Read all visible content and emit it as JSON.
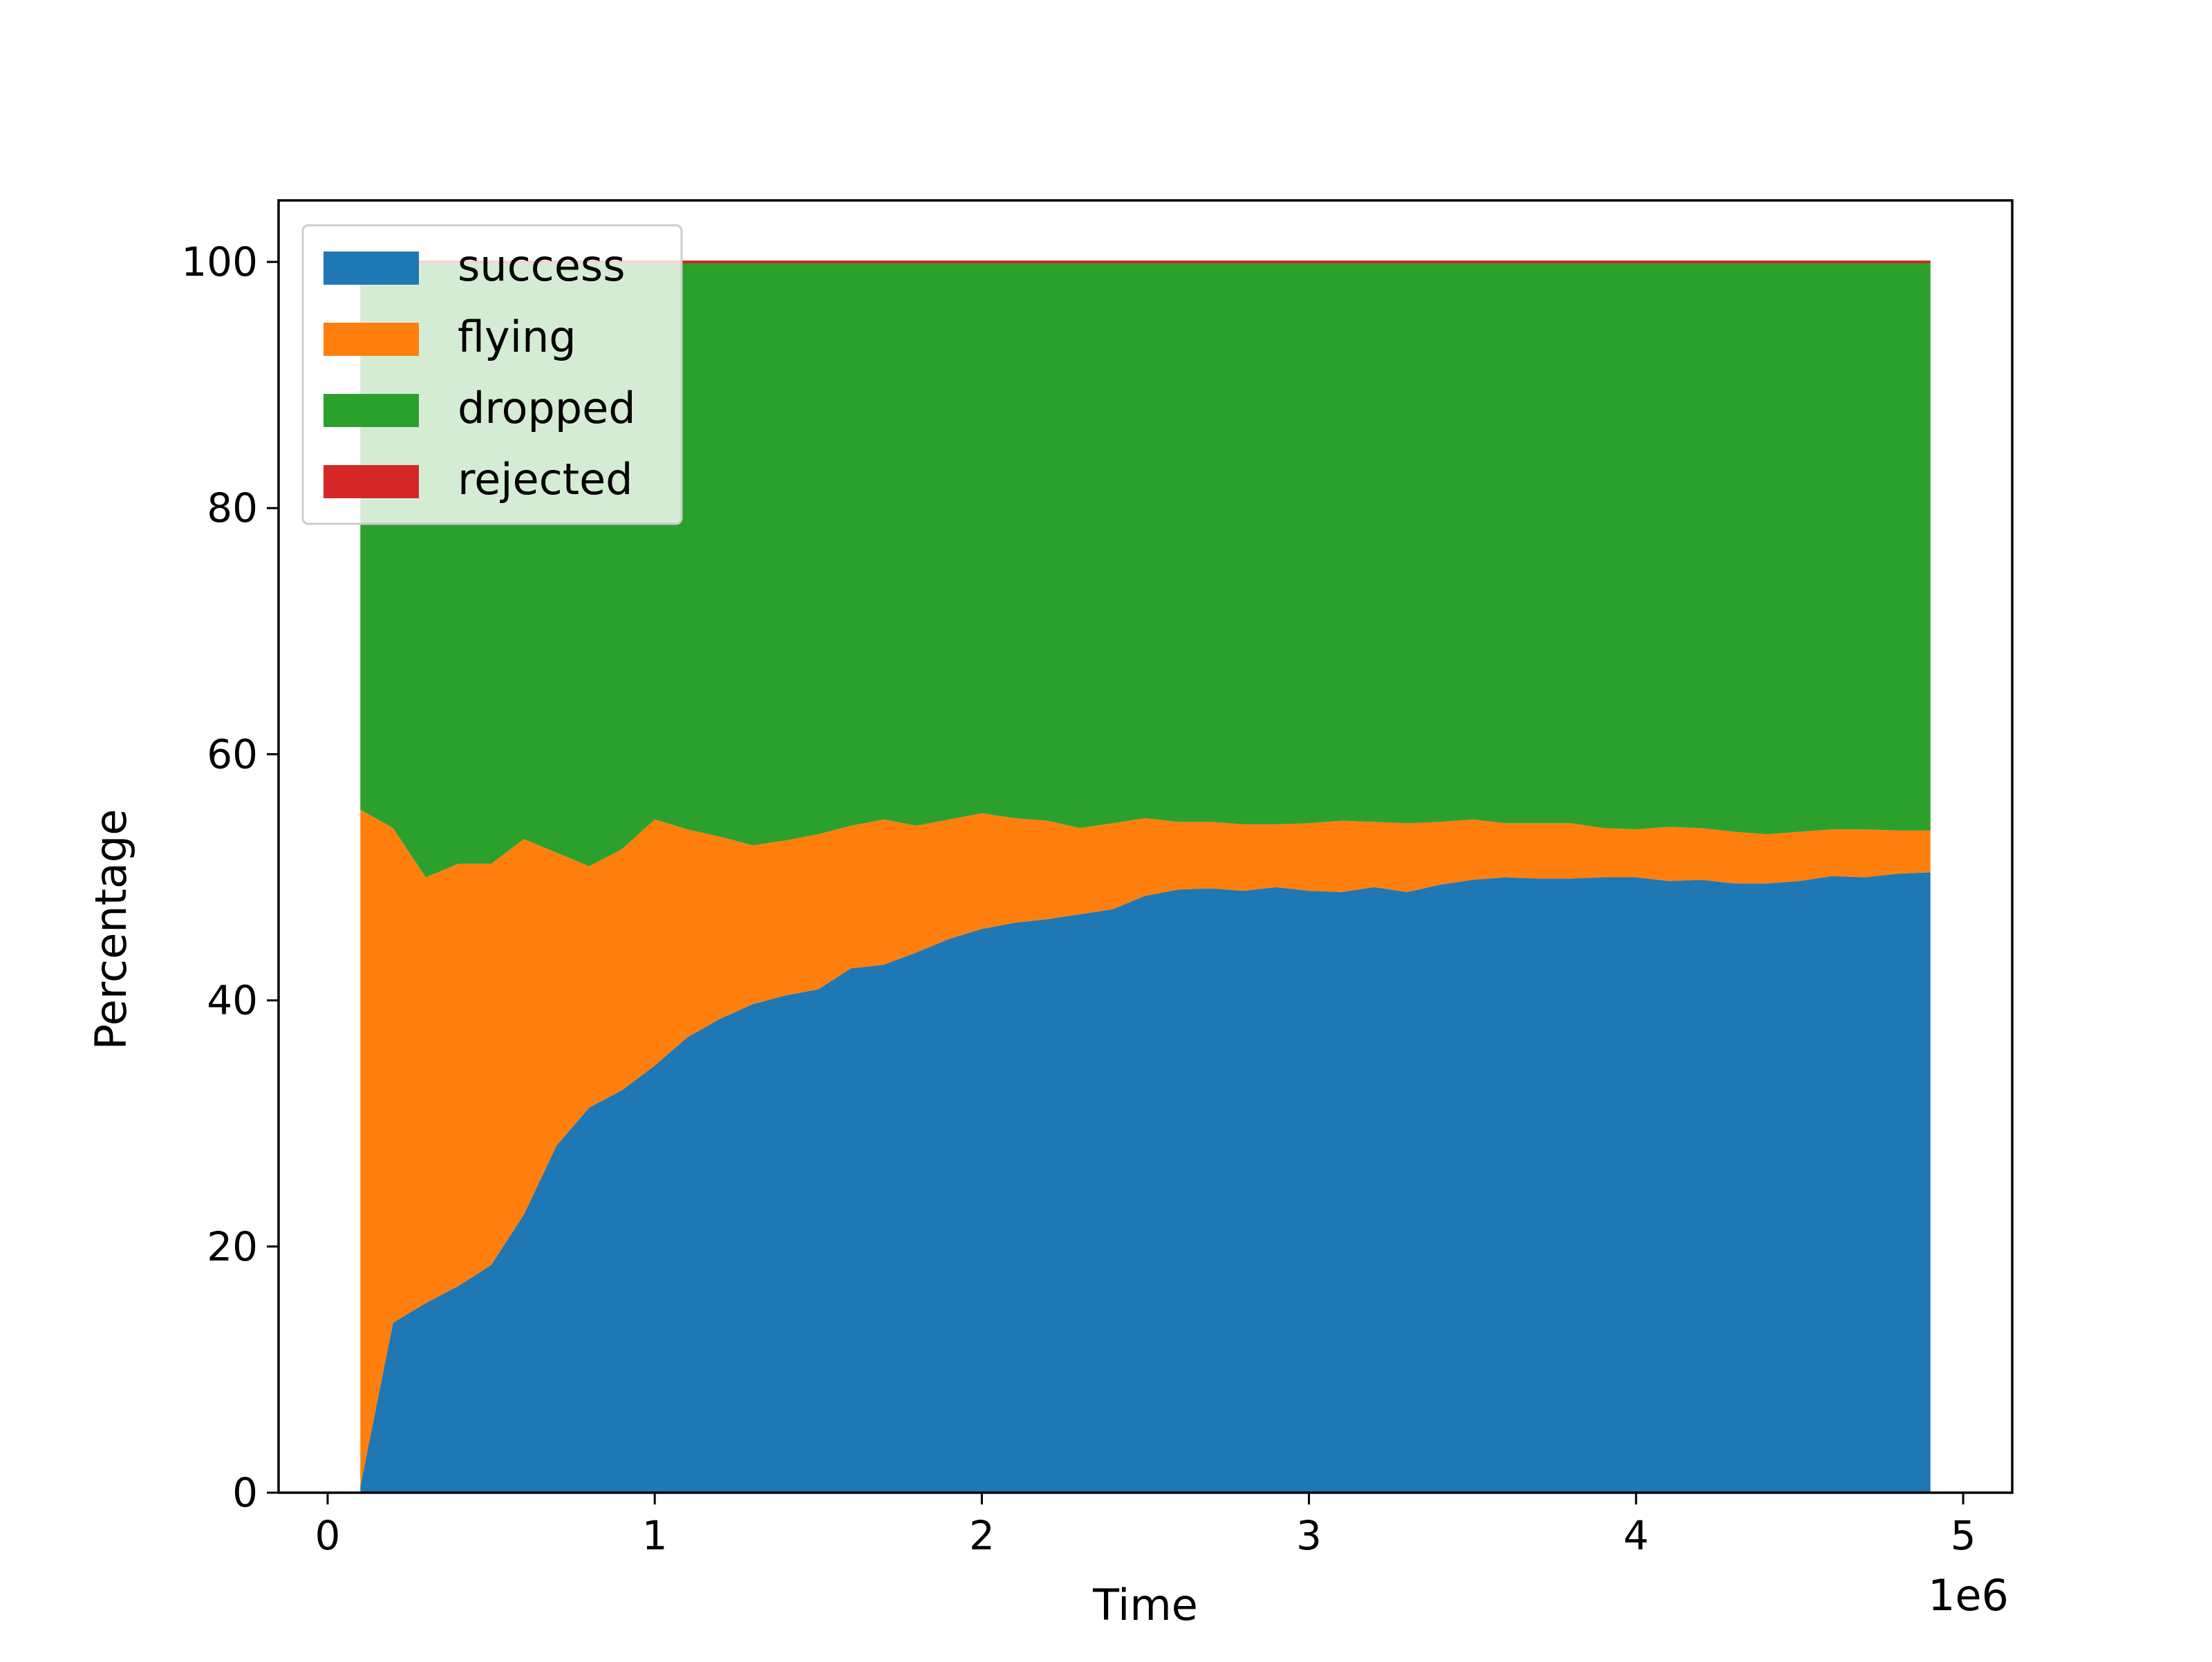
{
  "chart_data": {
    "type": "area",
    "stacked": true,
    "xlabel": "Time",
    "ylabel": "Percentage",
    "x_offset_label": "1e6",
    "x_scale": 1000000,
    "xlim": [
      -150000,
      5150000
    ],
    "ylim": [
      0,
      105
    ],
    "x_ticks": [
      0,
      1000000,
      2000000,
      3000000,
      4000000,
      5000000
    ],
    "x_tick_labels": [
      "0",
      "1",
      "2",
      "3",
      "4",
      "5"
    ],
    "y_ticks": [
      0,
      20,
      40,
      60,
      80,
      100
    ],
    "y_tick_labels": [
      "0",
      "20",
      "40",
      "60",
      "80",
      "100"
    ],
    "grid": false,
    "legend_position": "upper-left",
    "x": [
      100000,
      200000,
      300000,
      400000,
      500000,
      600000,
      700000,
      800000,
      900000,
      1000000,
      1100000,
      1200000,
      1300000,
      1400000,
      1500000,
      1600000,
      1700000,
      1800000,
      1900000,
      2000000,
      2100000,
      2200000,
      2300000,
      2400000,
      2500000,
      2600000,
      2700000,
      2800000,
      2900000,
      3000000,
      3100000,
      3200000,
      3300000,
      3400000,
      3500000,
      3600000,
      3700000,
      3800000,
      3900000,
      4000000,
      4100000,
      4200000,
      4300000,
      4400000,
      4500000,
      4600000,
      4700000,
      4800000,
      4900000
    ],
    "series": [
      {
        "name": "success",
        "color": "#1f77b4",
        "values": [
          0.5,
          13.8,
          15.4,
          16.8,
          18.5,
          22.6,
          28.2,
          31.3,
          32.7,
          34.7,
          37.0,
          38.5,
          39.7,
          40.4,
          40.9,
          42.6,
          42.9,
          43.9,
          45.0,
          45.8,
          46.3,
          46.6,
          47.0,
          47.4,
          48.5,
          49.0,
          49.1,
          48.9,
          49.2,
          48.9,
          48.8,
          49.2,
          48.8,
          49.4,
          49.8,
          50.0,
          49.9,
          49.9,
          50.0,
          50.0,
          49.7,
          49.8,
          49.5,
          49.5,
          49.7,
          50.1,
          50.0,
          50.3,
          50.4
        ]
      },
      {
        "name": "flying",
        "color": "#ff7f0e",
        "values": [
          55.0,
          40.2,
          34.6,
          34.3,
          32.6,
          30.5,
          23.8,
          19.6,
          19.6,
          20.0,
          16.9,
          14.8,
          12.9,
          12.6,
          12.6,
          11.6,
          11.8,
          10.3,
          9.7,
          9.4,
          8.5,
          8.0,
          7.0,
          7.0,
          6.3,
          5.5,
          5.4,
          5.4,
          5.1,
          5.5,
          5.8,
          5.3,
          5.6,
          5.1,
          4.9,
          4.4,
          4.5,
          4.5,
          4.0,
          3.9,
          4.4,
          4.2,
          4.2,
          4.0,
          4.0,
          3.8,
          3.9,
          3.5,
          3.4
        ]
      },
      {
        "name": "dropped",
        "color": "#2ca02c",
        "values": [
          44.5,
          46.0,
          50.0,
          48.9,
          48.9,
          46.9,
          48.0,
          49.1,
          47.7,
          45.3,
          46.1,
          46.7,
          47.4,
          47.0,
          46.5,
          45.8,
          45.3,
          45.8,
          45.3,
          44.8,
          45.2,
          45.4,
          46.0,
          45.6,
          45.2,
          45.5,
          45.5,
          45.7,
          45.7,
          45.6,
          45.4,
          45.5,
          45.6,
          45.5,
          45.3,
          45.6,
          45.6,
          45.6,
          46.0,
          46.1,
          45.9,
          46.0,
          46.3,
          46.5,
          46.3,
          46.1,
          46.1,
          46.2,
          46.2
        ]
      },
      {
        "name": "rejected",
        "color": "#d62728",
        "values": [
          0.0,
          0.0,
          0.0,
          0.0,
          0.0,
          0.0,
          0.0,
          0.0,
          0.0,
          0.0,
          0.0,
          0.0,
          0.0,
          0.0,
          0.0,
          0.0,
          0.0,
          0.0,
          0.0,
          0.0,
          0.0,
          0.0,
          0.0,
          0.0,
          0.0,
          0.0,
          0.0,
          0.0,
          0.0,
          0.0,
          0.0,
          0.0,
          0.0,
          0.0,
          0.0,
          0.0,
          0.0,
          0.0,
          0.0,
          0.0,
          0.0,
          0.0,
          0.0,
          0.0,
          0.0,
          0.0,
          0.0,
          0.0,
          0.0
        ]
      }
    ]
  }
}
